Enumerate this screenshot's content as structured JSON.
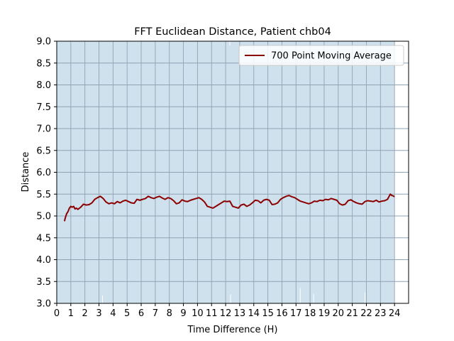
{
  "chart_data": {
    "type": "line",
    "title": "FFT Euclidean Distance, Patient chb04",
    "xlabel": "Time Difference (H)",
    "ylabel": "Distance",
    "xlim": [
      0,
      25
    ],
    "ylim": [
      3.0,
      9.0
    ],
    "xticks": [
      "0",
      "1",
      "2",
      "3",
      "4",
      "5",
      "6",
      "7",
      "8",
      "9",
      "10",
      "11",
      "12",
      "13",
      "14",
      "15",
      "16",
      "17",
      "18",
      "19",
      "20",
      "21",
      "22",
      "23",
      "24"
    ],
    "yticks": [
      "3.0",
      "3.5",
      "4.0",
      "4.5",
      "5.0",
      "5.5",
      "6.0",
      "6.5",
      "7.0",
      "7.5",
      "8.0",
      "8.5",
      "9.0"
    ],
    "grid": true,
    "legend_position": "top-right",
    "shaded_region_x": [
      0,
      24
    ],
    "colors": {
      "shade": "#d0e1ee",
      "raw_lines": "#ffffff",
      "grid": "#8fa3b3",
      "moving_average": "#8b0000"
    },
    "series": [
      {
        "name": "700 Point Moving Average",
        "color": "#8b0000",
        "x": [
          0.55,
          0.6,
          0.7,
          0.8,
          0.9,
          1.0,
          1.1,
          1.2,
          1.3,
          1.4,
          1.5,
          1.7,
          1.9,
          2.1,
          2.3,
          2.5,
          2.7,
          2.9,
          3.1,
          3.3,
          3.5,
          3.7,
          3.9,
          4.1,
          4.3,
          4.5,
          4.7,
          4.9,
          5.1,
          5.3,
          5.5,
          5.7,
          5.9,
          6.1,
          6.3,
          6.5,
          6.7,
          6.9,
          7.1,
          7.3,
          7.5,
          7.7,
          7.9,
          8.1,
          8.3,
          8.5,
          8.7,
          8.9,
          9.1,
          9.3,
          9.5,
          9.7,
          9.9,
          10.1,
          10.3,
          10.5,
          10.7,
          10.9,
          11.1,
          11.3,
          11.5,
          11.7,
          11.9,
          12.1,
          12.3,
          12.5,
          12.7,
          12.9,
          13.1,
          13.3,
          13.5,
          13.7,
          13.9,
          14.1,
          14.3,
          14.5,
          14.7,
          14.9,
          15.1,
          15.3,
          15.5,
          15.7,
          15.9,
          16.1,
          16.3,
          16.5,
          16.7,
          16.9,
          17.1,
          17.3,
          17.5,
          17.7,
          17.9,
          18.1,
          18.3,
          18.5,
          18.7,
          18.9,
          19.1,
          19.3,
          19.5,
          19.7,
          19.9,
          20.1,
          20.3,
          20.5,
          20.7,
          20.9,
          21.1,
          21.3,
          21.5,
          21.7,
          21.9,
          22.1,
          22.3,
          22.5,
          22.7,
          22.9,
          23.1,
          23.3,
          23.5,
          23.6,
          23.7,
          23.8,
          23.9,
          24.0
        ],
        "values": [
          4.88,
          4.95,
          5.05,
          5.1,
          5.18,
          5.22,
          5.2,
          5.22,
          5.16,
          5.18,
          5.15,
          5.2,
          5.27,
          5.25,
          5.26,
          5.3,
          5.38,
          5.42,
          5.45,
          5.4,
          5.32,
          5.28,
          5.3,
          5.28,
          5.33,
          5.3,
          5.34,
          5.36,
          5.33,
          5.3,
          5.29,
          5.38,
          5.36,
          5.38,
          5.4,
          5.45,
          5.42,
          5.4,
          5.43,
          5.45,
          5.41,
          5.38,
          5.42,
          5.4,
          5.35,
          5.28,
          5.3,
          5.37,
          5.34,
          5.33,
          5.36,
          5.38,
          5.4,
          5.42,
          5.38,
          5.32,
          5.22,
          5.2,
          5.18,
          5.22,
          5.26,
          5.3,
          5.34,
          5.33,
          5.34,
          5.22,
          5.2,
          5.18,
          5.25,
          5.27,
          5.22,
          5.25,
          5.3,
          5.36,
          5.35,
          5.3,
          5.36,
          5.38,
          5.36,
          5.26,
          5.27,
          5.3,
          5.38,
          5.42,
          5.45,
          5.47,
          5.44,
          5.42,
          5.38,
          5.34,
          5.32,
          5.3,
          5.28,
          5.3,
          5.34,
          5.33,
          5.36,
          5.35,
          5.38,
          5.37,
          5.4,
          5.38,
          5.36,
          5.28,
          5.25,
          5.27,
          5.35,
          5.37,
          5.33,
          5.3,
          5.28,
          5.27,
          5.33,
          5.35,
          5.34,
          5.33,
          5.36,
          5.32,
          5.34,
          5.35,
          5.38,
          5.44,
          5.5,
          5.47,
          5.46,
          5.44
        ]
      }
    ]
  }
}
